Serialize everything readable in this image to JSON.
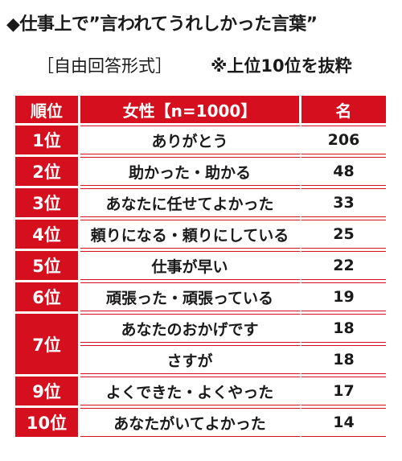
{
  "title": "◆仕事上で”言われてうれしかった言葉”",
  "subtitle_left": "［自由回答形式］",
  "subtitle_right": "※上位10位を抜粋",
  "table": {
    "header": {
      "rank": "順位",
      "word": "女性【n=1000】",
      "count": "名"
    },
    "rows": [
      {
        "rank": "1位",
        "word": "ありがとう",
        "count": "206"
      },
      {
        "rank": "2位",
        "word": "助かった・助かる",
        "count": "48"
      },
      {
        "rank": "3位",
        "word": "あなたに任せてよかった",
        "count": "33"
      },
      {
        "rank": "4位",
        "word": "頼りになる・頼りにしている",
        "count": "25"
      },
      {
        "rank": "5位",
        "word": "仕事が早い",
        "count": "22"
      },
      {
        "rank": "6位",
        "word": "頑張った・頑張っている",
        "count": "19"
      },
      {
        "rank": "7位",
        "word": "あなたのおかげです",
        "count": "18"
      },
      {
        "rank": "",
        "word": "さすが",
        "count": "18"
      },
      {
        "rank": "9位",
        "word": "よくできた・よくやった",
        "count": "17"
      },
      {
        "rank": "10位",
        "word": "あなたがいてよかった",
        "count": "14"
      }
    ]
  },
  "colors": {
    "accent": "#d50f1e",
    "text": "#1a1a1a",
    "background": "#ffffff"
  }
}
